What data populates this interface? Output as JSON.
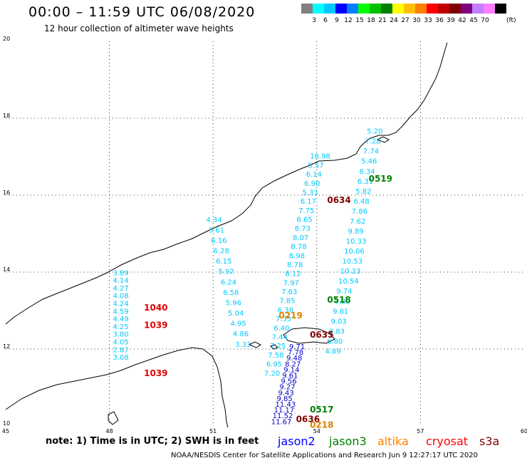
{
  "header": {
    "title": "00:00 – 11:59 UTC 06/08/2020",
    "subtitle": "12 hour collection of altimeter wave heights"
  },
  "colorbar": {
    "colors": [
      "#808080",
      "#00ffff",
      "#00c8ff",
      "#0000ff",
      "#0080ff",
      "#00ff00",
      "#00c000",
      "#008000",
      "#ffff00",
      "#ffc000",
      "#ff8000",
      "#ff0000",
      "#c00000",
      "#800000",
      "#800080",
      "#c080ff",
      "#ff80ff",
      "#000000"
    ],
    "tick_labels": [
      "3",
      "6",
      "9",
      "12",
      "15",
      "18",
      "21",
      "24",
      "27",
      "30",
      "33",
      "36",
      "39",
      "42",
      "45",
      "70"
    ],
    "unit": "(ft)"
  },
  "axes": {
    "x_ticks": [
      "45",
      "48",
      "51",
      "54",
      "57",
      "60"
    ],
    "y_ticks": [
      "20",
      "18",
      "16",
      "14",
      "12",
      "10"
    ]
  },
  "tracks": [
    {
      "id": "west",
      "lon": 48.1,
      "values": [
        "3.89",
        "4.14",
        "4.27",
        "4.08",
        "4.24",
        "4.59",
        "4.49",
        "4.25",
        "3.80",
        "4.05",
        "2.87",
        "3.08"
      ],
      "lat_start": 13.92,
      "lat_step": -0.2,
      "color": "#00c8ff"
    },
    {
      "id": "mid",
      "lon_start": 50.8,
      "lon_step": 0.07,
      "values": [
        "4.34",
        "5.61",
        "6.16",
        "6.28",
        "6.15",
        "5.92",
        "6.24",
        "6.58",
        "5.96",
        "5.04",
        "4.95",
        "4.86",
        "3.33"
      ],
      "lat_start": 15.3,
      "lat_step": -0.27,
      "color": "#00c8ff"
    },
    {
      "id": "east-a",
      "lon_start": 53.8,
      "lon_step": -0.055,
      "values": [
        "18.98",
        "5.57",
        "6.14",
        "6.90",
        "5.33",
        "6.17",
        "7.75",
        "8.65",
        "8.73",
        "8.07",
        "8.78",
        "8.98",
        "8.78",
        "8.12",
        "7.97",
        "7.63",
        "7.85",
        "6.38",
        "7.35",
        "6.40",
        "7.44",
        "7.25",
        "7.58",
        "6.95",
        "7.20"
      ],
      "lat_start": 16.95,
      "lat_step": -0.235,
      "color": "#00c8ff"
    },
    {
      "id": "east-b",
      "lon_start": 55.45,
      "lon_step": -0.055,
      "values": [
        "5.20",
        "7.28",
        "7.74",
        "5.46",
        "6.34",
        "6.31",
        "5.82",
        "6.48",
        "7.86",
        "7.62",
        "9.89",
        "10.33",
        "10.06",
        "10.53",
        "10.23",
        "10.54",
        "9.74",
        "9.82",
        "9.81",
        "9.03",
        "8.83",
        "6.80",
        "4.89"
      ],
      "lat_start": 17.6,
      "lat_step": -0.26,
      "color": "#00c8ff"
    },
    {
      "id": "south",
      "lon_start": 53.2,
      "lon_step": -0.04,
      "values": [
        "9.71",
        "7.78",
        "9.48",
        "8.27",
        "9.14",
        "9.61",
        "9.56",
        "9.27",
        "9.43",
        "9.85",
        "11.43",
        "11.17",
        "11.52",
        "11.67"
      ],
      "lat_start": 12.0,
      "lat_step": -0.15,
      "color": "#0000c8"
    }
  ],
  "pass_labels": [
    {
      "text": "1040",
      "lon": 49.0,
      "lat": 13.0,
      "color": "#e00000"
    },
    {
      "text": "1039",
      "lon": 49.0,
      "lat": 12.55,
      "color": "#e00000"
    },
    {
      "text": "1039",
      "lon": 49.0,
      "lat": 11.3,
      "color": "#e00000"
    },
    {
      "text": "0519",
      "lon": 55.5,
      "lat": 16.35,
      "color": "#008000"
    },
    {
      "text": "0634",
      "lon": 54.3,
      "lat": 15.8,
      "color": "#800000"
    },
    {
      "text": "0518",
      "lon": 54.3,
      "lat": 13.2,
      "color": "#008000"
    },
    {
      "text": "0219",
      "lon": 52.9,
      "lat": 12.8,
      "color": "#e08000"
    },
    {
      "text": "0635",
      "lon": 53.8,
      "lat": 12.3,
      "color": "#800000"
    },
    {
      "text": "0517",
      "lon": 53.8,
      "lat": 10.35,
      "color": "#008000"
    },
    {
      "text": "0636",
      "lon": 53.4,
      "lat": 10.1,
      "color": "#800000"
    },
    {
      "text": "0218",
      "lon": 53.8,
      "lat": 9.95,
      "color": "#e08000"
    }
  ],
  "footer": {
    "note": "note: 1) Time is in UTC; 2) SWH is in feet",
    "legend": [
      {
        "name": "jason2",
        "color": "#0000ff"
      },
      {
        "name": "jason3",
        "color": "#008000"
      },
      {
        "name": "altika",
        "color": "#ff8000"
      },
      {
        "name": "cryosat",
        "color": "#ff0000"
      },
      {
        "name": "s3a",
        "color": "#800000"
      }
    ],
    "credit": "NOAA/NESDIS Center for Satellite Applications and Research    Jun  9 12:27:17 UTC 2020"
  }
}
